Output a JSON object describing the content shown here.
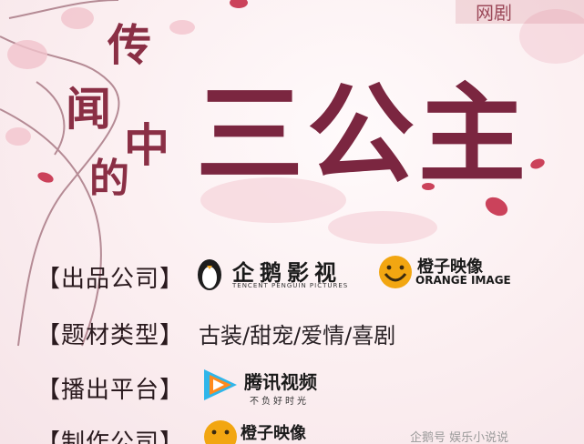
{
  "top_badge": "网剧",
  "title": {
    "chars_left": [
      "传",
      "闻",
      "中",
      "的"
    ],
    "main": "三公主"
  },
  "info": {
    "producer_label": "【出品公司】",
    "genre_label": "【题材类型】",
    "genre_value": "古装/甜宠/爱情/喜剧",
    "platform_label": "【播出平台】",
    "maker_label": "【制作公司】"
  },
  "logos": {
    "tencent_penguin_cn": "企鹅影视",
    "tencent_penguin_en": "TENCENT PENGUIN PICTURES",
    "orange_image_cn": "橙子映像",
    "orange_image_en": "ORANGE IMAGE",
    "tencent_video_cn": "腾讯视频",
    "tencent_video_slogan": "不负好时光",
    "orange_image_cn_2": "橙子映像"
  },
  "watermark": "企鹅号 娱乐小说说"
}
